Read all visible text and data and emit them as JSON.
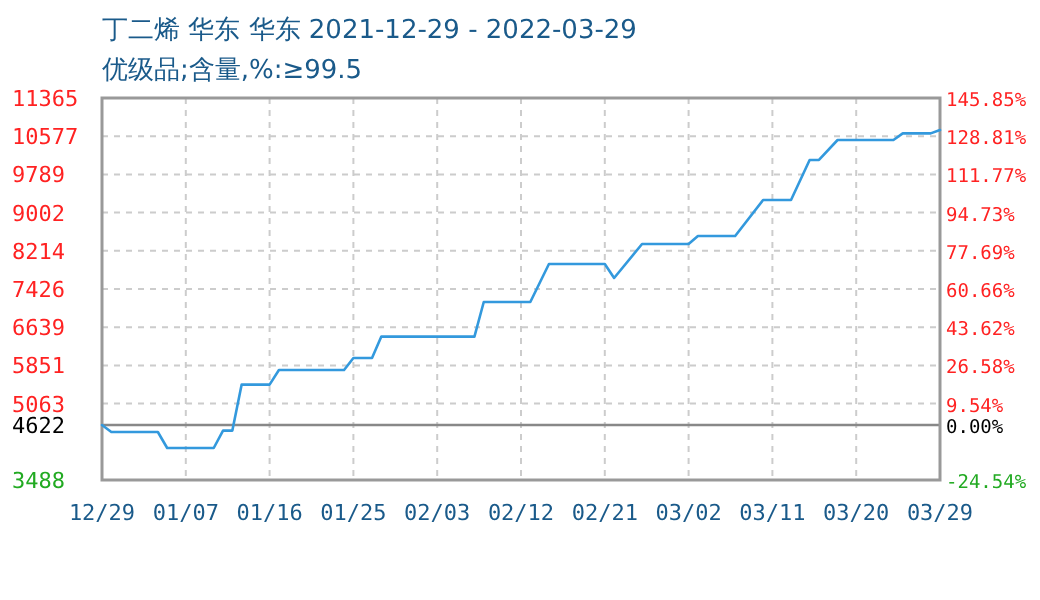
{
  "chart_data": {
    "type": "line",
    "title": "丁二烯 华东 华东 2021-12-29 - 2022-03-29",
    "subtitle": "优级品;含量,%:≥99.5",
    "x": [
      "2021-12-29",
      "2021-12-30",
      "2022-01-04",
      "2022-01-05",
      "2022-01-10",
      "2022-01-11",
      "2022-01-12",
      "2022-01-13",
      "2022-01-16",
      "2022-01-17",
      "2022-01-24",
      "2022-01-25",
      "2022-01-27",
      "2022-01-28",
      "2022-02-07",
      "2022-02-08",
      "2022-02-13",
      "2022-02-15",
      "2022-02-21",
      "2022-02-22",
      "2022-02-25",
      "2022-03-02",
      "2022-03-03",
      "2022-03-07",
      "2022-03-10",
      "2022-03-13",
      "2022-03-15",
      "2022-03-16",
      "2022-03-18",
      "2022-03-24",
      "2022-03-25",
      "2022-03-28",
      "2022-03-29"
    ],
    "series": [
      {
        "color": "#3399dd",
        "values": [
          4622,
          4478,
          4478,
          4148,
          4148,
          4507,
          4507,
          5455,
          5455,
          5756,
          5756,
          6004,
          6004,
          6445,
          6445,
          7158,
          7158,
          7942,
          7942,
          7654,
          8354,
          8354,
          8519,
          8519,
          9262,
          9262,
          10087,
          10087,
          10499,
          10499,
          10635,
          10635,
          10705
        ]
      }
    ],
    "xlim": [
      "2021-12-29",
      "2022-03-29"
    ],
    "xticks": [
      {
        "value": "2021-12-29",
        "label": "12/29"
      },
      {
        "value": "2022-01-07",
        "label": "01/07"
      },
      {
        "value": "2022-01-16",
        "label": "01/16"
      },
      {
        "value": "2022-01-25",
        "label": "01/25"
      },
      {
        "value": "2022-02-03",
        "label": "02/03"
      },
      {
        "value": "2022-02-12",
        "label": "02/12"
      },
      {
        "value": "2022-02-21",
        "label": "02/21"
      },
      {
        "value": "2022-03-02",
        "label": "03/02"
      },
      {
        "value": "2022-03-11",
        "label": "03/11"
      },
      {
        "value": "2022-03-20",
        "label": "03/20"
      },
      {
        "value": "2022-03-29",
        "label": "03/29"
      }
    ],
    "ylim": [
      3488,
      11365
    ],
    "yticks": [
      3488,
      4622,
      5063,
      5851,
      6639,
      7426,
      8214,
      9002,
      9789,
      10577,
      11365
    ],
    "y2lim": [
      -24.54,
      145.85
    ],
    "y2ticks": [
      {
        "value": -24.54,
        "label": "-24.54%"
      },
      {
        "value": 0,
        "label": "0.00%"
      },
      {
        "value": 9.54,
        "label": "9.54%"
      },
      {
        "value": 26.58,
        "label": "26.58%"
      },
      {
        "value": 43.62,
        "label": "43.62%"
      },
      {
        "value": 60.66,
        "label": "60.66%"
      },
      {
        "value": 77.69,
        "label": "77.69%"
      },
      {
        "value": 94.73,
        "label": "94.73%"
      },
      {
        "value": 111.77,
        "label": "111.77%"
      },
      {
        "value": 128.81,
        "label": "128.81%"
      },
      {
        "value": 145.85,
        "label": "145.85%"
      }
    ],
    "ref_lines": [
      {
        "axis": "y",
        "value": 4622,
        "color": "#888888"
      }
    ],
    "grid": true,
    "marker": "none",
    "line_style": "solid"
  }
}
